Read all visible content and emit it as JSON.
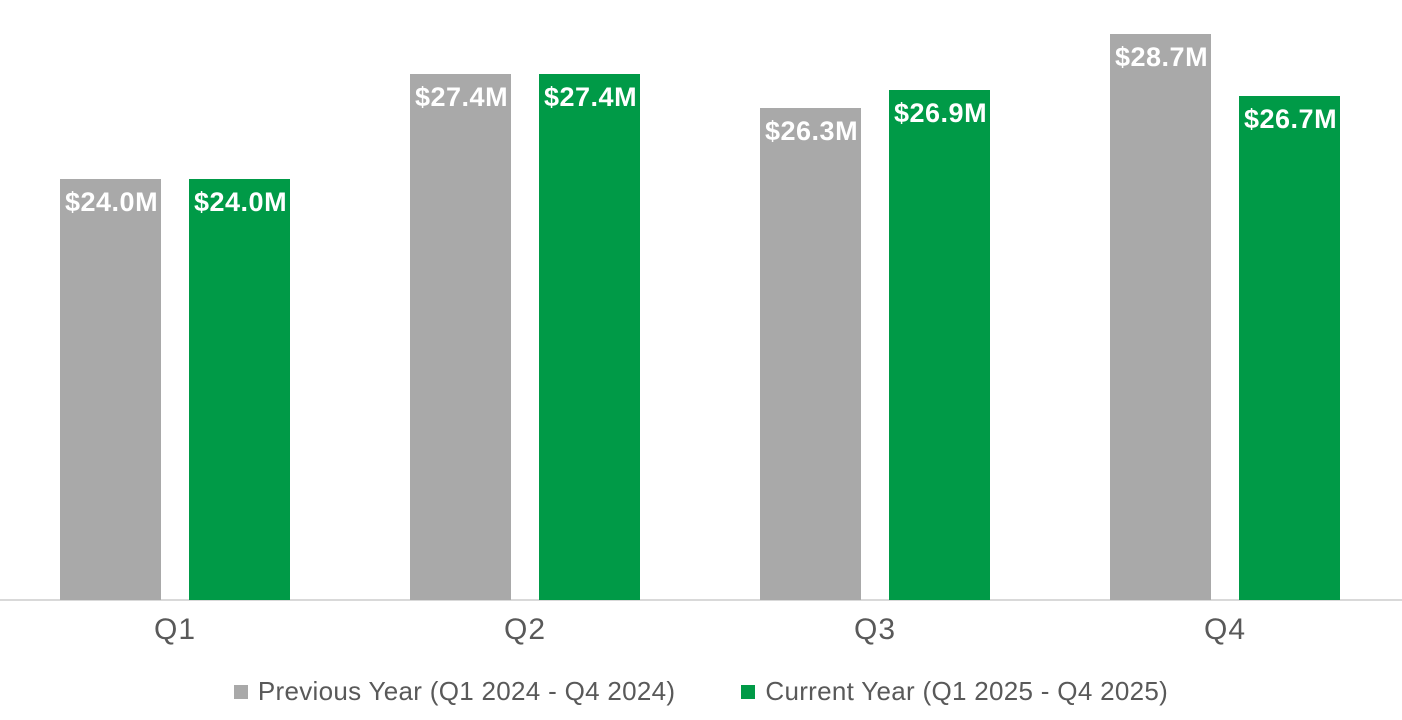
{
  "chart_data": {
    "type": "bar",
    "title": "",
    "xlabel": "",
    "ylabel": "",
    "categories": [
      "Q1",
      "Q2",
      "Q3",
      "Q4"
    ],
    "series": [
      {
        "name": "Previous Year (Q1 2024 - Q4 2024)",
        "key": "previous-year",
        "color": "#a9a9a9",
        "values": [
          24.0,
          27.4,
          26.3,
          28.7
        ],
        "data_labels": [
          "$24.0M",
          "$27.4M",
          "$26.3M",
          "$28.7M"
        ]
      },
      {
        "name": "Current Year (Q1 2025 - Q4 2025)",
        "key": "current-year",
        "color": "#009a47",
        "values": [
          24.0,
          27.4,
          26.9,
          26.7
        ],
        "data_labels": [
          "$24.0M",
          "$27.4M",
          "$26.9M",
          "$26.7M"
        ]
      }
    ],
    "ylim": [
      10.4,
      29.8
    ],
    "grid": false,
    "legend_position": "bottom",
    "value_label_color": "#ffffff",
    "axis_text_color": "#595959",
    "axis_line_color": "#d9d9d9",
    "background": "#ffffff"
  }
}
